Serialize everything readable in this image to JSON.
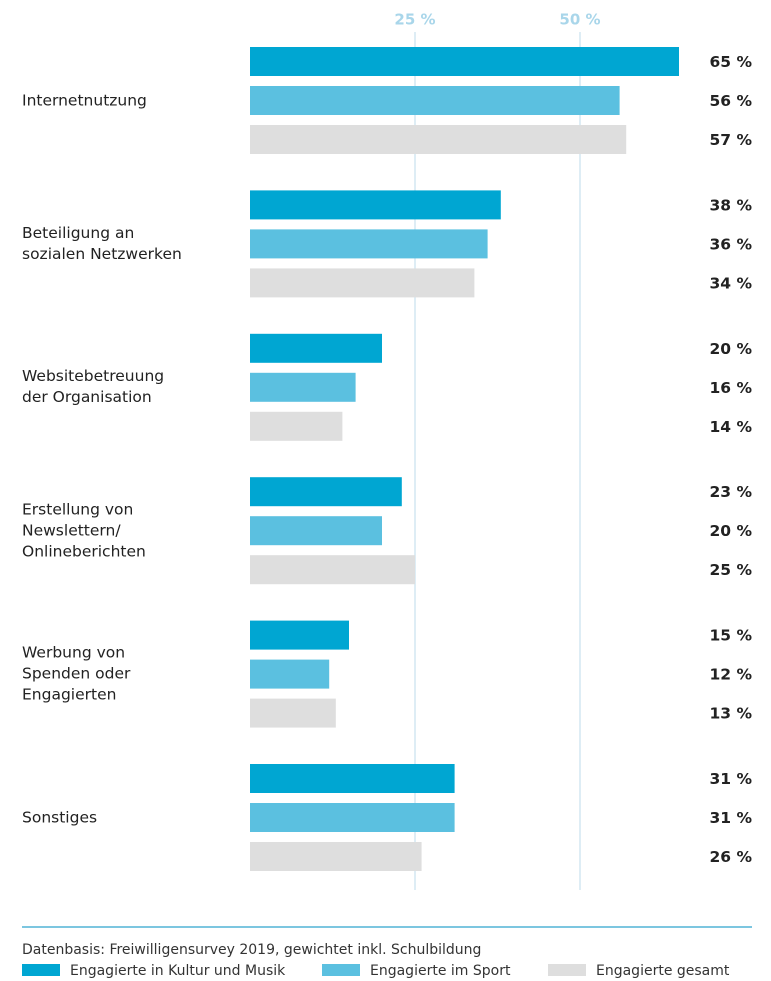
{
  "chart_data": {
    "type": "hbar",
    "categories": [
      "Internetnutzung",
      "Beteiligung an\nsozialen Netzwerken",
      "Websitebetreuung\nder Organisation",
      "Erstellung von\nNewslettern/\nOnlineberichten",
      "Werbung von\nSpenden oder\nEngagierten",
      "Sonstiges"
    ],
    "series": [
      {
        "name": "Engagierte in Kultur und Musik",
        "color": "#00a6d2",
        "values": [
          65,
          38,
          20,
          23,
          15,
          31
        ],
        "value_labels": [
          "65 %",
          "38 %",
          "20 %",
          "23 %",
          "15 %",
          "31 %"
        ]
      },
      {
        "name": "Engagierte im Sport",
        "color": "#5bc0e0",
        "values": [
          56,
          36,
          16,
          20,
          12,
          31
        ],
        "value_labels": [
          "56 %",
          "36 %",
          "16 %",
          "20 %",
          "12 %",
          "31 %"
        ]
      },
      {
        "name": "Engagierte gesamt",
        "color": "#dedede",
        "values": [
          57,
          34,
          14,
          25,
          13,
          26
        ],
        "value_labels": [
          "57 %",
          "34 %",
          "14 %",
          "25 %",
          "13 %",
          "26 %"
        ]
      }
    ],
    "xlim": [
      0,
      70
    ],
    "xticks": [
      {
        "value": 25,
        "label": "25 %"
      },
      {
        "value": 50,
        "label": "50 %"
      }
    ],
    "grid": true,
    "note": "Datenbasis: Freiwilligensurvey 2019, gewichtet inkl. Schulbildung"
  }
}
